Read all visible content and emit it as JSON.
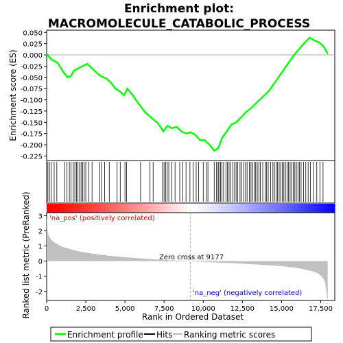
{
  "chart_data": {
    "type": "line",
    "title_line1": "Enrichment plot:",
    "title_line2": "MACROMOLECULE_CATABOLIC_PROCESS",
    "es_panel": {
      "ylabel": "Enrichment score (ES)",
      "ylim": [
        -0.235,
        0.055
      ],
      "yticks": [
        0.05,
        0.025,
        0.0,
        -0.025,
        -0.05,
        -0.075,
        -0.1,
        -0.125,
        -0.15,
        -0.175,
        -0.2,
        -0.225
      ],
      "ytick_labels": [
        "0.050",
        "0.025",
        "0.000",
        "-0.025",
        "-0.050",
        "-0.075",
        "-0.100",
        "-0.125",
        "-0.150",
        "-0.175",
        "-0.200",
        "-0.225"
      ],
      "series": [
        {
          "name": "Enrichment profile",
          "color": "#00ff00",
          "x": [
            0,
            300,
            700,
            1100,
            1350,
            1550,
            1750,
            2000,
            2300,
            2600,
            2900,
            3200,
            3500,
            3800,
            4100,
            4400,
            4700,
            4950,
            5150,
            5500,
            5900,
            6300,
            6700,
            7100,
            7450,
            7700,
            8000,
            8300,
            8600,
            8900,
            9200,
            9500,
            9800,
            10100,
            10400,
            10700,
            10950,
            11200,
            11500,
            11800,
            12100,
            12400,
            12700,
            13000,
            13300,
            13600,
            13900,
            14200,
            14500,
            14800,
            15100,
            15400,
            15700,
            16000,
            16300,
            16550,
            16800,
            17100,
            17400,
            17700,
            17950
          ],
          "y": [
            0.002,
            -0.01,
            -0.018,
            -0.04,
            -0.05,
            -0.047,
            -0.035,
            -0.03,
            -0.025,
            -0.02,
            -0.03,
            -0.04,
            -0.048,
            -0.052,
            -0.062,
            -0.075,
            -0.082,
            -0.09,
            -0.075,
            -0.09,
            -0.11,
            -0.128,
            -0.14,
            -0.152,
            -0.17,
            -0.158,
            -0.163,
            -0.16,
            -0.17,
            -0.175,
            -0.172,
            -0.178,
            -0.19,
            -0.19,
            -0.2,
            -0.213,
            -0.208,
            -0.185,
            -0.17,
            -0.155,
            -0.15,
            -0.14,
            -0.128,
            -0.12,
            -0.11,
            -0.1,
            -0.09,
            -0.08,
            -0.065,
            -0.05,
            -0.035,
            -0.02,
            -0.005,
            0.008,
            0.02,
            0.03,
            0.038,
            0.032,
            0.028,
            0.018,
            0.002
          ]
        }
      ]
    },
    "hits": [
      80,
      180,
      280,
      480,
      650,
      1150,
      1300,
      1450,
      1550,
      1700,
      1800,
      1900,
      2000,
      2100,
      2200,
      2300,
      2400,
      2500,
      2700,
      2900,
      3400,
      3500,
      3700,
      4000,
      4500,
      4700,
      5000,
      5100,
      6000,
      6600,
      6800,
      7400,
      7500,
      7600,
      7700,
      7800,
      8000,
      8200,
      8500,
      8700,
      8900,
      9150,
      9350,
      9550,
      9700,
      10000,
      10200,
      10300,
      10700,
      10850,
      10950,
      11000,
      11100,
      11200,
      11300,
      11450,
      11550,
      11650,
      11750,
      11900,
      12000,
      12100,
      12200,
      12350,
      12450,
      12600,
      12700,
      12800,
      12950,
      13050,
      13150,
      13250,
      13350,
      13450,
      13550,
      13650,
      13800,
      13950,
      14050,
      14150,
      14300,
      14450,
      14550,
      14650,
      14750,
      14850,
      14950,
      15050,
      15150,
      15250,
      15350,
      15450,
      15550,
      15650,
      15750,
      15850,
      15950,
      16050,
      16150,
      16250,
      16400,
      16550,
      16700,
      16850,
      17050,
      17250,
      17450,
      17650
    ],
    "ranking_panel": {
      "ylabel": "Ranked list metric (PreRanked)",
      "ylim": [
        -2.6,
        3.2
      ],
      "yticks": [
        3,
        2,
        1,
        0,
        -1,
        -2
      ],
      "ytick_labels": [
        "3",
        "2",
        "1",
        "0",
        "-1",
        "-2"
      ],
      "xlabel": "Rank in Ordered Dataset",
      "xlim": [
        0,
        18400
      ],
      "xticks": [
        0,
        2500,
        5000,
        7500,
        10000,
        12500,
        15000,
        17500
      ],
      "xtick_labels": [
        "0",
        "2,500",
        "5,000",
        "7,500",
        "10,000",
        "12,500",
        "15,000",
        "17,500"
      ],
      "metric_x": [
        0,
        80,
        200,
        400,
        700,
        1000,
        1500,
        2000,
        3000,
        4000,
        5000,
        6000,
        7000,
        8000,
        9177,
        10000,
        11000,
        12000,
        13000,
        14000,
        15000,
        16000,
        16500,
        17000,
        17300,
        17500,
        17700,
        17800,
        17850,
        17900,
        17950
      ],
      "metric_y": [
        3.0,
        1.8,
        1.55,
        1.3,
        1.1,
        0.95,
        0.8,
        0.65,
        0.48,
        0.35,
        0.26,
        0.18,
        0.11,
        0.05,
        0.0,
        -0.05,
        -0.1,
        -0.15,
        -0.2,
        -0.26,
        -0.33,
        -0.45,
        -0.55,
        -0.68,
        -0.8,
        -0.95,
        -1.2,
        -1.5,
        -1.9,
        -2.3,
        -2.6
      ],
      "zero_cross_label": "Zero cross at 9177",
      "zero_cross_x": 9177,
      "pos_label": "'na_pos' (positively correlated)",
      "neg_label": "'na_neg' (negatively correlated)"
    },
    "legend": {
      "items": [
        {
          "label": "Enrichment profile",
          "color": "#00ff00"
        },
        {
          "label": "Hits",
          "color": "#000000"
        },
        {
          "label": "Ranking metric scores",
          "color": "#bbbbbb"
        }
      ]
    },
    "colors": {
      "positive": "#ff0000",
      "negative": "#0000ff",
      "metric_fill": "#c0c0c0",
      "profile": "#00ff00"
    }
  }
}
